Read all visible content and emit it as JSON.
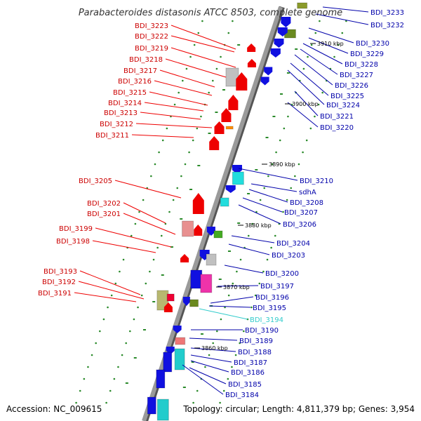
{
  "title": "Parabacteroides distasonis ATCC 8503, complete genome",
  "accession": "Accession: NC_009615",
  "topology": "Topology: circular; Length: 4,811,379 bp; Genes: 3,954",
  "colors": {
    "forward_label": "#cc0000",
    "reverse_label": "#0000aa",
    "highlight_label": "#33cccc",
    "backbone": "#9a9a9a",
    "tick": "#2a8a2a"
  },
  "kbp_markers": [
    "3910 kbp",
    "3900 kbp",
    "3890 kbp",
    "3880 kbp",
    "3870 kbp",
    "3860 kbp"
  ],
  "left_labels": [
    "BDI_3223",
    "BDI_3222",
    "BDI_3219",
    "BDI_3218",
    "BDI_3217",
    "BDI_3216",
    "BDI_3215",
    "BDI_3214",
    "BDI_3213",
    "BDI_3212",
    "BDI_3211",
    "BDI_3205",
    "BDI_3202",
    "BDI_3201",
    "BDI_3199",
    "BDI_3198",
    "BDI_3193",
    "BDI_3192",
    "BDI_3191"
  ],
  "right_labels": [
    "BDI_3233",
    "BDI_3232",
    "BDI_3230",
    "BDI_3229",
    "BDI_3228",
    "BDI_3227",
    "BDI_3226",
    "BDI_3225",
    "BDI_3224",
    "BDI_3221",
    "BDI_3220",
    "BDI_3210",
    "sdhA",
    "BDI_3208",
    "BDI_3207",
    "BDI_3206",
    "BDI_3204",
    "BDI_3203",
    "BDI_3200",
    "BDI_3197",
    "BDI_3196",
    "BDI_3195",
    "BDI_3194",
    "BDI_3190",
    "BDI_3189",
    "BDI_3188",
    "BDI_3187",
    "BDI_3186",
    "BDI_3185",
    "BDI_3184"
  ],
  "highlighted_label": "BDI_3194"
}
